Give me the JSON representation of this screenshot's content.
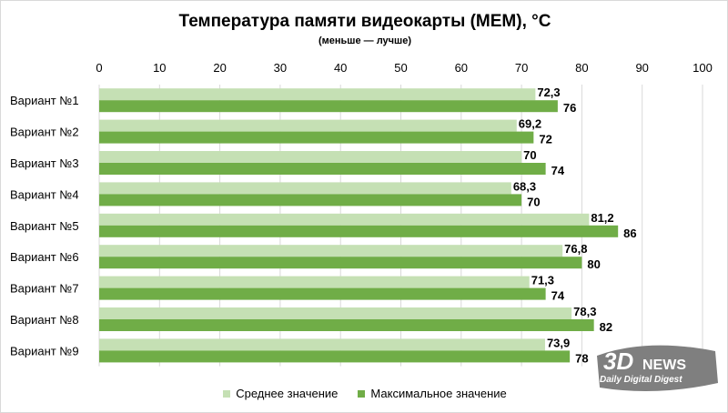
{
  "chart_data": {
    "type": "bar",
    "orientation": "horizontal",
    "title": "Температура памяти видеокарты (MEM), °C",
    "subtitle": "(меньше — лучше)",
    "categories": [
      "Вариант №1",
      "Вариант №2",
      "Вариант №3",
      "Вариант №4",
      "Вариант №5",
      "Вариант №6",
      "Вариант №7",
      "Вариант №8",
      "Вариант №9"
    ],
    "series": [
      {
        "name": "Среднее значение",
        "color": "#c5e0b4",
        "values": [
          72.3,
          69.2,
          70,
          68.3,
          81.2,
          76.8,
          71.3,
          78.3,
          73.9
        ],
        "labels": [
          "72,3",
          "69,2",
          "70",
          "68,3",
          "81,2",
          "76,8",
          "71,3",
          "78,3",
          "73,9"
        ]
      },
      {
        "name": "Максимальное значение",
        "color": "#70ad47",
        "values": [
          76,
          72,
          74,
          70,
          86,
          80,
          74,
          82,
          78
        ],
        "labels": [
          "76",
          "72",
          "74",
          "70",
          "86",
          "80",
          "74",
          "82",
          "78"
        ]
      }
    ],
    "xlim": [
      0,
      100
    ],
    "xticks": [
      0,
      10,
      20,
      30,
      40,
      50,
      60,
      70,
      80,
      90,
      100
    ],
    "axis_position": "top",
    "grid": true,
    "legend": "bottom"
  },
  "watermark": {
    "brand": "3DNEWS",
    "tagline": "Daily Digital Digest"
  }
}
